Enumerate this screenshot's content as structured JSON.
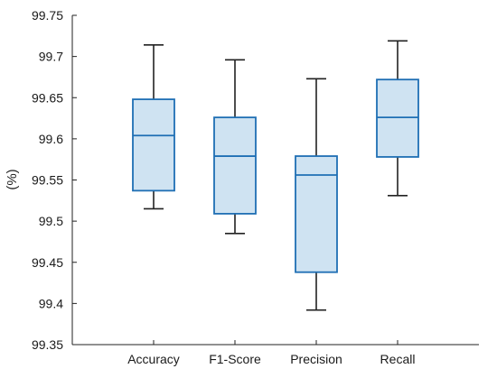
{
  "chart_data": {
    "type": "box",
    "title": "",
    "xlabel": "",
    "ylabel": "(%)",
    "ylim": [
      99.35,
      99.75
    ],
    "yticks": [
      99.35,
      99.4,
      99.45,
      99.5,
      99.55,
      99.6,
      99.65,
      99.7,
      99.75
    ],
    "ytick_labels": [
      "99.35",
      "99.4",
      "99.45",
      "99.5",
      "99.55",
      "99.6",
      "99.65",
      "99.7",
      "99.75"
    ],
    "grid": false,
    "categories": [
      "Accuracy",
      "F1-Score",
      "Precision",
      "Recall"
    ],
    "boxes": [
      {
        "category": "Accuracy",
        "whisker_low": 99.515,
        "q1": 99.537,
        "median": 99.604,
        "q3": 99.648,
        "whisker_high": 99.714
      },
      {
        "category": "F1-Score",
        "whisker_low": 99.485,
        "q1": 99.509,
        "median": 99.579,
        "q3": 99.626,
        "whisker_high": 99.696
      },
      {
        "category": "Precision",
        "whisker_low": 99.392,
        "q1": 99.438,
        "median": 99.556,
        "q3": 99.579,
        "whisker_high": 99.673
      },
      {
        "category": "Recall",
        "whisker_low": 99.531,
        "q1": 99.578,
        "median": 99.626,
        "q3": 99.672,
        "whisker_high": 99.719
      }
    ],
    "colors": {
      "box_fill": "#cfe3f2",
      "box_stroke": "#1f6fb4",
      "whisker": "#222222",
      "axis": "#222222"
    }
  }
}
